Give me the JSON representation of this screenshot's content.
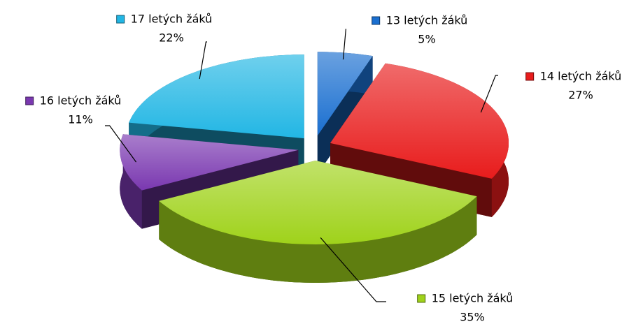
{
  "chart_data": {
    "type": "pie3d",
    "categories": [
      "13 letých žáků",
      "14 letých žáků",
      "15 letých žáků",
      "16 letých žáků",
      "17 letých žáků"
    ],
    "values": [
      5,
      27,
      35,
      11,
      22
    ],
    "value_labels": [
      "5%",
      "27%",
      "35%",
      "11%",
      "22%"
    ],
    "colors": [
      "#1a6fd0",
      "#e81c1c",
      "#9fd21a",
      "#7a38b0",
      "#22b6e4"
    ]
  }
}
